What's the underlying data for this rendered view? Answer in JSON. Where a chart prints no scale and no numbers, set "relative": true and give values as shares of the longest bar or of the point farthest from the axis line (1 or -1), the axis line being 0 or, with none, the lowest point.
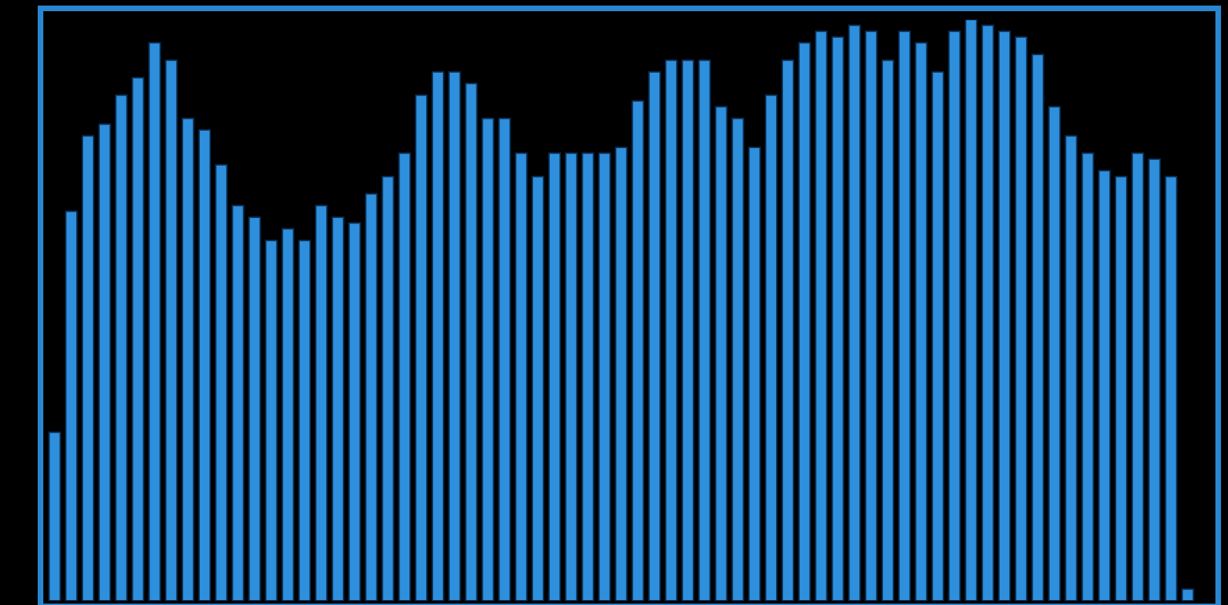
{
  "chart_data": {
    "type": "bar",
    "relative": true,
    "color": "#2e8fdc",
    "categories": [
      null,
      null,
      null,
      null,
      null,
      null,
      null,
      null,
      null,
      null,
      null,
      null,
      null,
      null,
      null,
      null,
      null,
      null,
      null,
      null,
      null,
      null,
      null,
      null,
      null,
      null,
      null,
      null,
      null,
      null,
      null,
      null,
      null,
      null,
      null,
      null,
      null,
      null,
      null,
      null,
      null,
      null,
      null,
      null,
      null,
      null,
      null,
      null,
      null,
      null,
      null,
      null,
      null,
      null,
      null,
      null,
      null,
      null,
      null,
      null,
      null,
      null,
      null,
      null,
      null,
      null,
      null,
      null,
      null
    ],
    "values": [
      0.29,
      0.67,
      0.8,
      0.82,
      0.87,
      0.9,
      0.96,
      0.93,
      0.83,
      0.81,
      0.75,
      0.68,
      0.66,
      0.62,
      0.64,
      0.62,
      0.68,
      0.66,
      0.65,
      0.7,
      0.73,
      0.77,
      0.87,
      0.91,
      0.91,
      0.89,
      0.83,
      0.83,
      0.77,
      0.73,
      0.77,
      0.77,
      0.77,
      0.77,
      0.78,
      0.86,
      0.91,
      0.93,
      0.93,
      0.93,
      0.85,
      0.83,
      0.78,
      0.87,
      0.93,
      0.96,
      0.98,
      0.97,
      0.99,
      0.98,
      0.93,
      0.98,
      0.96,
      0.91,
      0.98,
      1,
      0.99,
      0.98,
      0.97,
      0.94,
      0.85,
      0.8,
      0.77,
      0.74,
      0.73,
      0.77,
      0.76,
      0.73,
      0.02
    ]
  }
}
